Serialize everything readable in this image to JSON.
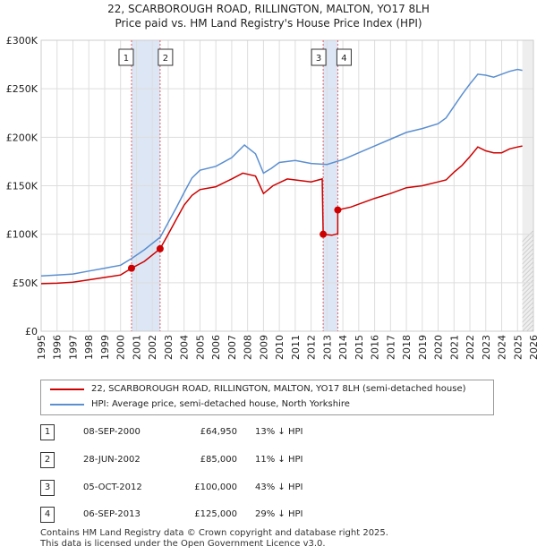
{
  "chart_data": {
    "type": "line",
    "title": "22, SCARBOROUGH ROAD, RILLINGTON, MALTON, YO17 8LH",
    "subtitle": "Price paid vs. HM Land Registry's House Price Index (HPI)",
    "xlim": [
      1995,
      2026
    ],
    "ylim": [
      0,
      300000
    ],
    "yticks": [
      0,
      50000,
      100000,
      150000,
      200000,
      250000,
      300000
    ],
    "ytick_labels": [
      "£0",
      "£50K",
      "£100K",
      "£150K",
      "£200K",
      "£250K",
      "£300K"
    ],
    "xticks": [
      1995,
      1996,
      1997,
      1998,
      1999,
      2000,
      2001,
      2002,
      2003,
      2004,
      2005,
      2006,
      2007,
      2008,
      2009,
      2010,
      2011,
      2012,
      2013,
      2014,
      2015,
      2016,
      2017,
      2018,
      2019,
      2020,
      2021,
      2022,
      2023,
      2024,
      2025,
      2026
    ],
    "grid": true,
    "shaded_periods": [
      [
        2000.69,
        2002.49
      ],
      [
        2012.76,
        2013.68
      ]
    ],
    "series": [
      {
        "name": "22, SCARBOROUGH ROAD, RILLINGTON, MALTON, YO17 8LH (semi-detached house)",
        "color": "#cc0000",
        "points": [
          [
            1995.0,
            49000
          ],
          [
            1996.0,
            49500
          ],
          [
            1997.0,
            50500
          ],
          [
            1998.0,
            53000
          ],
          [
            1999.0,
            55500
          ],
          [
            2000.0,
            58000
          ],
          [
            2000.69,
            64950
          ],
          [
            2001.5,
            72000
          ],
          [
            2002.49,
            85000
          ],
          [
            2003.0,
            100000
          ],
          [
            2003.5,
            115000
          ],
          [
            2004.0,
            130000
          ],
          [
            2004.5,
            140000
          ],
          [
            2005.0,
            146000
          ],
          [
            2006.0,
            149000
          ],
          [
            2007.0,
            157000
          ],
          [
            2007.7,
            163000
          ],
          [
            2008.5,
            160000
          ],
          [
            2009.0,
            142000
          ],
          [
            2009.6,
            150000
          ],
          [
            2010.5,
            157000
          ],
          [
            2011.0,
            156000
          ],
          [
            2012.0,
            154000
          ],
          [
            2012.7,
            157000
          ],
          [
            2012.76,
            100000
          ],
          [
            2013.3,
            99000
          ],
          [
            2013.68,
            100500
          ],
          [
            2013.68,
            125000
          ],
          [
            2014.5,
            128000
          ],
          [
            2015.0,
            131000
          ],
          [
            2016.0,
            137000
          ],
          [
            2017.0,
            142000
          ],
          [
            2018.0,
            148000
          ],
          [
            2019.0,
            150000
          ],
          [
            2020.0,
            154000
          ],
          [
            2020.5,
            156000
          ],
          [
            2021.0,
            164000
          ],
          [
            2021.5,
            171000
          ],
          [
            2022.0,
            180000
          ],
          [
            2022.5,
            190000
          ],
          [
            2023.0,
            186000
          ],
          [
            2023.5,
            184000
          ],
          [
            2024.0,
            184000
          ],
          [
            2024.5,
            188000
          ],
          [
            2025.0,
            190000
          ],
          [
            2025.3,
            191000
          ]
        ]
      },
      {
        "name": "HPI: Average price, semi-detached house, North Yorkshire",
        "color": "#5b8fd0",
        "points": [
          [
            1995.0,
            57000
          ],
          [
            1996.0,
            58000
          ],
          [
            1997.0,
            59000
          ],
          [
            1998.0,
            62000
          ],
          [
            1999.0,
            65000
          ],
          [
            2000.0,
            68000
          ],
          [
            2000.7,
            75000
          ],
          [
            2001.5,
            84000
          ],
          [
            2002.5,
            97000
          ],
          [
            2003.0,
            112000
          ],
          [
            2003.5,
            127000
          ],
          [
            2004.0,
            143000
          ],
          [
            2004.5,
            158000
          ],
          [
            2005.0,
            166000
          ],
          [
            2006.0,
            170000
          ],
          [
            2007.0,
            179000
          ],
          [
            2007.8,
            192000
          ],
          [
            2008.5,
            183000
          ],
          [
            2009.0,
            163000
          ],
          [
            2009.5,
            168000
          ],
          [
            2010.0,
            174000
          ],
          [
            2011.0,
            176000
          ],
          [
            2012.0,
            173000
          ],
          [
            2013.0,
            172000
          ],
          [
            2014.0,
            177000
          ],
          [
            2015.0,
            184000
          ],
          [
            2016.0,
            191000
          ],
          [
            2017.0,
            198000
          ],
          [
            2018.0,
            205000
          ],
          [
            2019.0,
            209000
          ],
          [
            2020.0,
            214000
          ],
          [
            2020.5,
            220000
          ],
          [
            2021.0,
            232000
          ],
          [
            2021.5,
            244000
          ],
          [
            2022.0,
            255000
          ],
          [
            2022.5,
            265000
          ],
          [
            2023.0,
            264000
          ],
          [
            2023.5,
            262000
          ],
          [
            2024.0,
            265000
          ],
          [
            2024.5,
            268000
          ],
          [
            2025.0,
            270000
          ],
          [
            2025.3,
            269000
          ]
        ]
      }
    ],
    "sales": [
      {
        "id": "1",
        "x": 2000.69,
        "y": 64950
      },
      {
        "id": "2",
        "x": 2002.49,
        "y": 85000
      },
      {
        "id": "3",
        "x": 2012.76,
        "y": 100000
      },
      {
        "id": "4",
        "x": 2013.68,
        "y": 125000
      }
    ],
    "marker_label_order": [
      "1",
      "2",
      "3",
      "4"
    ]
  },
  "legend": {
    "property_label": "22, SCARBOROUGH ROAD, RILLINGTON, MALTON, YO17 8LH (semi-detached house)",
    "hpi_label": "HPI: Average price, semi-detached house, North Yorkshire"
  },
  "table": [
    {
      "num": "1",
      "date": "08-SEP-2000",
      "price": "£64,950",
      "hpi": "13% ↓ HPI"
    },
    {
      "num": "2",
      "date": "28-JUN-2002",
      "price": "£85,000",
      "hpi": "11% ↓ HPI"
    },
    {
      "num": "3",
      "date": "05-OCT-2012",
      "price": "£100,000",
      "hpi": "43% ↓ HPI"
    },
    {
      "num": "4",
      "date": "06-SEP-2013",
      "price": "£125,000",
      "hpi": "29% ↓ HPI"
    }
  ],
  "footer": {
    "line1": "Contains HM Land Registry data © Crown copyright and database right 2025.",
    "line2": "This data is licensed under the Open Government Licence v3.0."
  },
  "colors": {
    "property": "#cc0000",
    "hpi": "#5b8fd0",
    "shade": "#dde6f5",
    "grid": "#dddddd",
    "vline": "#e06060"
  }
}
